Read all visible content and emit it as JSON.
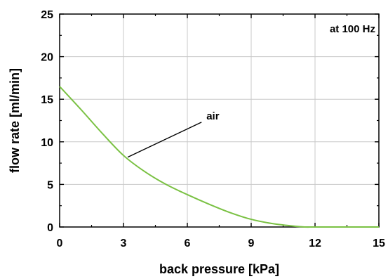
{
  "chart_data": {
    "type": "line",
    "title": "",
    "xlabel": "back pressure [kPa]",
    "ylabel": "flow rate [ml/min]",
    "xlim": [
      0,
      15
    ],
    "ylim": [
      0,
      25
    ],
    "xticks": [
      0,
      3,
      6,
      9,
      12,
      15
    ],
    "yticks": [
      0,
      5,
      10,
      15,
      20,
      25
    ],
    "xtick_labels": [
      "0",
      "3",
      "6",
      "9",
      "12",
      "15"
    ],
    "ytick_labels": [
      "0",
      "5",
      "10",
      "15",
      "20",
      "25"
    ],
    "grid": true,
    "legend": "none",
    "annotation_top_right": "at 100 Hz",
    "series": [
      {
        "name": "air",
        "color": "#7ac143",
        "x": [
          0,
          1,
          2,
          3,
          4,
          5,
          6,
          7,
          8,
          9,
          10,
          11,
          11.5,
          12,
          13,
          14,
          15
        ],
        "y": [
          16.5,
          13.8,
          11.0,
          8.4,
          6.5,
          5.0,
          3.8,
          2.7,
          1.7,
          0.9,
          0.4,
          0.1,
          0.0,
          0.0,
          0.0,
          0.0,
          0.0
        ]
      }
    ],
    "series_label": {
      "text": "air",
      "point": [
        3.2,
        8.2
      ],
      "label_anchor": [
        6.7,
        12.3
      ]
    }
  }
}
